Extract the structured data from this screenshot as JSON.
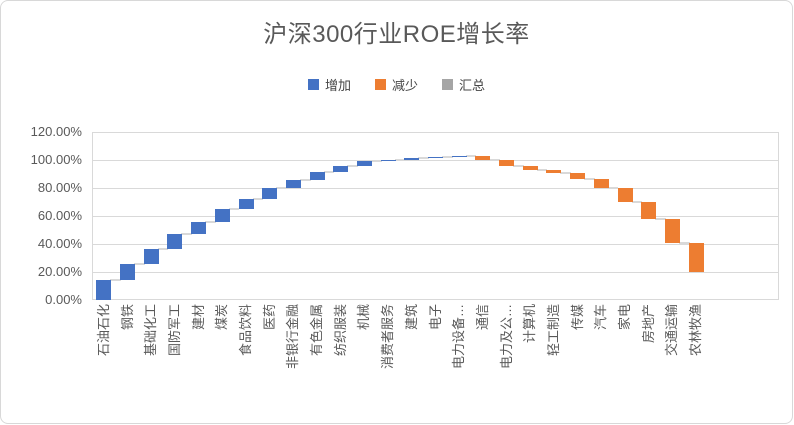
{
  "chart": {
    "title": "沪深300行业ROE增长率"
  },
  "chart_data": {
    "type": "bar",
    "subtype": "waterfall",
    "title": "沪深300行业ROE增长率",
    "xlabel": "",
    "ylabel": "",
    "ylim": [
      0,
      120
    ],
    "y_tick_step": 20,
    "y_tick_labels": [
      "0.00%",
      "20.00%",
      "40.00%",
      "60.00%",
      "80.00%",
      "100.00%",
      "120.00%"
    ],
    "grid": true,
    "legend_position": "top",
    "legend": {
      "items": [
        {
          "label": "增加",
          "type": "increase",
          "color": "#4472C4"
        },
        {
          "label": "减少",
          "type": "decrease",
          "color": "#ED7D31"
        },
        {
          "label": "汇总",
          "type": "total",
          "color": "#A5A5A5"
        }
      ]
    },
    "colors": {
      "increase": "#4472C4",
      "decrease": "#ED7D31",
      "total": "#A5A5A5",
      "connector": "#D9D9D9",
      "gridline": "#D9D9D9",
      "text": "#595959"
    },
    "trailing_empty_slots": 3,
    "categories": [
      "石油石化",
      "钢铁",
      "基础化工",
      "国防军工",
      "建材",
      "煤炭",
      "食品饮料",
      "医药",
      "非银行金融",
      "有色金属",
      "纺织服装",
      "机械",
      "消费者服务",
      "建筑",
      "电子",
      "电力设备…",
      "通信",
      "电力及公…",
      "计算机",
      "轻工制造",
      "传媒",
      "汽车",
      "家电",
      "房地产",
      "交通运输",
      "农林牧渔"
    ],
    "series": [
      {
        "name": "石油石化",
        "type": "increase",
        "start": 0,
        "end": 14
      },
      {
        "name": "钢铁",
        "type": "increase",
        "start": 14,
        "end": 26
      },
      {
        "name": "基础化工",
        "type": "increase",
        "start": 26,
        "end": 36.5
      },
      {
        "name": "国防军工",
        "type": "increase",
        "start": 36.5,
        "end": 47
      },
      {
        "name": "建材",
        "type": "increase",
        "start": 47,
        "end": 55.5
      },
      {
        "name": "煤炭",
        "type": "increase",
        "start": 55.5,
        "end": 65
      },
      {
        "name": "食品饮料",
        "type": "increase",
        "start": 65,
        "end": 72.5
      },
      {
        "name": "医药",
        "type": "increase",
        "start": 72.5,
        "end": 80
      },
      {
        "name": "非银行金融",
        "type": "increase",
        "start": 80,
        "end": 86
      },
      {
        "name": "有色金属",
        "type": "increase",
        "start": 86,
        "end": 91.5
      },
      {
        "name": "纺织服装",
        "type": "increase",
        "start": 91.5,
        "end": 95.5
      },
      {
        "name": "机械",
        "type": "increase",
        "start": 95.5,
        "end": 99
      },
      {
        "name": "消费者服务",
        "type": "increase",
        "start": 99,
        "end": 100.2
      },
      {
        "name": "建筑",
        "type": "increase",
        "start": 100.2,
        "end": 101.3
      },
      {
        "name": "电子",
        "type": "increase",
        "start": 101.3,
        "end": 102.3
      },
      {
        "name": "电力设备…",
        "type": "increase",
        "start": 102.3,
        "end": 103
      },
      {
        "name": "通信",
        "type": "decrease",
        "start": 103,
        "end": 100.3
      },
      {
        "name": "电力及公…",
        "type": "decrease",
        "start": 100.3,
        "end": 96
      },
      {
        "name": "计算机",
        "type": "decrease",
        "start": 96,
        "end": 93
      },
      {
        "name": "轻工制造",
        "type": "decrease",
        "start": 93,
        "end": 91
      },
      {
        "name": "传媒",
        "type": "decrease",
        "start": 91,
        "end": 86.5
      },
      {
        "name": "汽车",
        "type": "decrease",
        "start": 86.5,
        "end": 80
      },
      {
        "name": "家电",
        "type": "decrease",
        "start": 80,
        "end": 70
      },
      {
        "name": "房地产",
        "type": "decrease",
        "start": 70,
        "end": 58
      },
      {
        "name": "交通运输",
        "type": "decrease",
        "start": 58,
        "end": 40.5
      },
      {
        "name": "农林牧渔",
        "type": "decrease",
        "start": 40.5,
        "end": 20
      }
    ]
  }
}
